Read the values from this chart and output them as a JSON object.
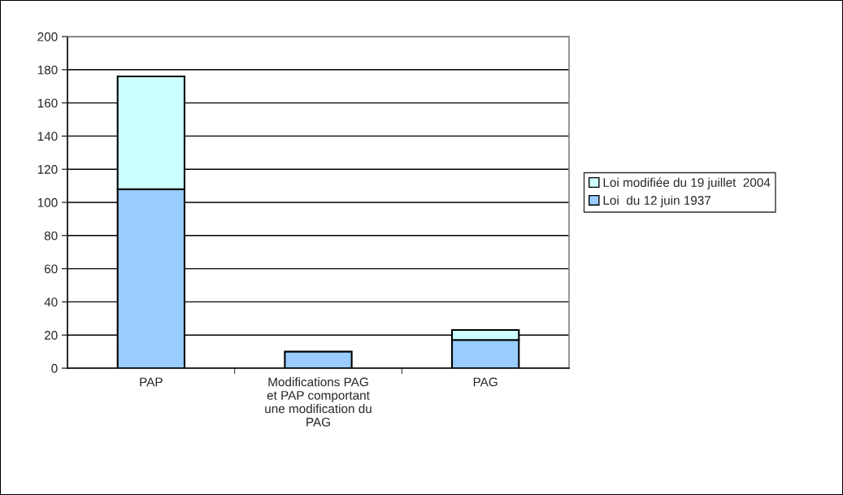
{
  "chart_data": {
    "type": "bar",
    "stacked": true,
    "categories": [
      "PAP",
      "Modifications PAG\net PAP comportant\nune modification du\nPAG",
      "PAG"
    ],
    "series": [
      {
        "name": "Loi  du 12 juin 1937",
        "color": "#99ccff",
        "values": [
          108,
          10,
          17
        ]
      },
      {
        "name": "Loi modifiée du 19 juillet  2004",
        "color": "#ccffff",
        "values": [
          68,
          null,
          6
        ]
      }
    ],
    "ylim": [
      0,
      200
    ],
    "yticks": [
      0,
      20,
      40,
      60,
      80,
      100,
      120,
      140,
      160,
      180,
      200
    ],
    "grid": "y",
    "legend": "right"
  }
}
